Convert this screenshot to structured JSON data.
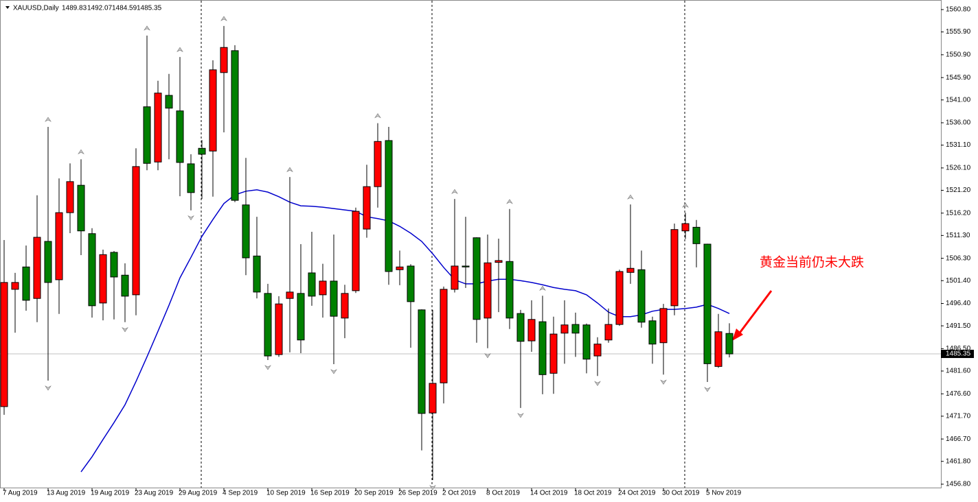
{
  "chart_data": {
    "type": "candlestick",
    "title": "XAUUSD,Daily",
    "annotation": "黄金当前仍未大跌",
    "categories": [
      "7 Aug 2019",
      null,
      null,
      null,
      "13 Aug 2019",
      null,
      null,
      null,
      "19 Aug 2019",
      null,
      null,
      null,
      "23 Aug 2019",
      null,
      null,
      null,
      "29 Aug 2019",
      null,
      null,
      null,
      "4 Sep 2019",
      null,
      null,
      null,
      "10 Sep 2019",
      null,
      null,
      null,
      "16 Sep 2019",
      null,
      null,
      null,
      "20 Sep 2019",
      null,
      null,
      null,
      "26 Sep 2019",
      null,
      null,
      null,
      "2 Oct 2019",
      null,
      null,
      null,
      "8 Oct 2019",
      null,
      null,
      null,
      "14 Oct 2019",
      null,
      null,
      null,
      "18 Oct 2019",
      null,
      null,
      null,
      "24 Oct 2019",
      null,
      null,
      null,
      "30 Oct 2019",
      null,
      null,
      null,
      "5 Nov 2019",
      null,
      null
    ],
    "open": [
      1473.8,
      1499.5,
      1504.4,
      1497.5,
      1510.0,
      1501.6,
      1516.3,
      1522.3,
      1511.7,
      1496.5,
      1507.6,
      1502.6,
      1498.3,
      1539.5,
      1527.4,
      1542.0,
      1538.6,
      1527.0,
      1530.4,
      1529.8,
      1547.0,
      1551.8,
      1518.0,
      1506.8,
      1498.6,
      1485.2,
      1497.5,
      1498.6,
      1503.1,
      1498.3,
      1501.3,
      1493.2,
      1499.2,
      1512.7,
      1522.0,
      1532.1,
      1503.8,
      1504.6,
      1495.0,
      1472.4,
      1479.0,
      1499.5,
      1504.6,
      1510.8,
      1493.2,
      1505.4,
      1505.6,
      1494.2,
      1488.2,
      1492.4,
      1481.1,
      1489.9,
      1491.8,
      1491.7,
      1484.9,
      1488.4,
      1491.8,
      1503.2,
      1503.8,
      1492.6,
      1487.8,
      1495.9,
      1512.3,
      1513.1,
      1509.4,
      1482.6,
      1489.83
    ],
    "high": [
      1510.3,
      1503.1,
      1509.1,
      1520.1,
      1535.1,
      1523.8,
      1527.1,
      1528.0,
      1512.9,
      1508.2,
      1507.9,
      1505.2,
      1530.4,
      1555.1,
      1545.2,
      1546.7,
      1550.4,
      1529.1,
      1532.2,
      1549.7,
      1557.2,
      1553.0,
      1528.3,
      1515.4,
      1500.7,
      1498.0,
      1524.1,
      1509.4,
      1512.1,
      1505.1,
      1511.5,
      1500.5,
      1517.4,
      1526.8,
      1535.9,
      1535.1,
      1508.0,
      1505.0,
      1495.1,
      1495.0,
      1500.1,
      1519.3,
      1515.4,
      1510.9,
      1511.5,
      1510.6,
      1517.1,
      1495.0,
      1497.1,
      1498.1,
      1493.5,
      1497.1,
      1494.4,
      1492.0,
      1489.0,
      1495.3,
      1503.8,
      1518.1,
      1508.0,
      1493.5,
      1496.3,
      1513.9,
      1516.3,
      1514.7,
      1509.5,
      1494.1,
      1492.07
    ],
    "low": [
      1472.0,
      1490.0,
      1494.8,
      1492.3,
      1479.5,
      1494.1,
      1511.8,
      1507.0,
      1493.3,
      1492.7,
      1492.9,
      1492.3,
      1493.8,
      1525.6,
      1525.6,
      1528.0,
      1519.9,
      1516.8,
      1519.3,
      1519.8,
      1533.9,
      1518.6,
      1502.6,
      1497.5,
      1484.0,
      1484.7,
      1485.7,
      1485.5,
      1495.9,
      1493.3,
      1483.1,
      1488.8,
      1498.7,
      1510.8,
      1517.4,
      1500.5,
      1500.4,
      1486.7,
      1464.2,
      1457.7,
      1474.5,
      1498.8,
      1499.8,
      1487.8,
      1486.6,
      1494.5,
      1490.8,
      1473.5,
      1485.8,
      1476.5,
      1476.6,
      1483.2,
      1484.7,
      1481.1,
      1480.5,
      1487.8,
      1491.5,
      1500.7,
      1491.1,
      1483.2,
      1480.8,
      1493.8,
      1510.5,
      1504.3,
      1479.2,
      1482.3,
      1484.59
    ],
    "close": [
      1501.0,
      1501.0,
      1497.1,
      1510.9,
      1501.0,
      1516.3,
      1523.1,
      1512.3,
      1495.9,
      1507.1,
      1502.2,
      1498.0,
      1526.4,
      1527.1,
      1542.5,
      1539.2,
      1527.3,
      1520.7,
      1529.1,
      1547.6,
      1552.5,
      1519.0,
      1506.4,
      1498.9,
      1484.9,
      1496.3,
      1498.9,
      1488.4,
      1498.0,
      1501.3,
      1493.6,
      1498.6,
      1516.6,
      1522.0,
      1531.9,
      1503.4,
      1504.4,
      1496.8,
      1472.3,
      1478.9,
      1499.5,
      1504.6,
      1504.4,
      1492.9,
      1505.3,
      1505.8,
      1493.2,
      1488.1,
      1492.9,
      1480.8,
      1489.7,
      1491.7,
      1489.9,
      1484.2,
      1487.5,
      1491.8,
      1503.4,
      1504.1,
      1492.3,
      1487.5,
      1495.3,
      1512.6,
      1513.9,
      1509.5,
      1483.2,
      1490.2,
      1485.35
    ],
    "up_color": "#ff0000",
    "down_color": "#008000",
    "ma": {
      "color": "#0000cc",
      "values": [
        null,
        null,
        null,
        null,
        null,
        null,
        null,
        1459.5,
        1462.8,
        1466.6,
        1470.3,
        1474.2,
        1479.3,
        1484.7,
        1490.3,
        1496.0,
        1502.0,
        1506.5,
        1511.1,
        1514.8,
        1518.3,
        1520.2,
        1521.0,
        1521.3,
        1520.8,
        1519.8,
        1518.6,
        1517.8,
        1517.7,
        1517.5,
        1517.2,
        1516.9,
        1516.6,
        1515.4,
        1515.0,
        1514.5,
        1513.3,
        1511.8,
        1510.0,
        1507.3,
        1504.3,
        1501.6,
        1500.7,
        1500.7,
        1501.3,
        1501.7,
        1501.7,
        1501.4,
        1501.0,
        1500.5,
        1499.9,
        1499.5,
        1499.2,
        1498.3,
        1496.5,
        1494.5,
        1493.5,
        1493.5,
        1493.9,
        1494.7,
        1495.1,
        1495.1,
        1495.3,
        1495.6,
        1496.2,
        1495.3,
        1494.2
      ]
    },
    "ylim": [
      1455.9,
      1562.9
    ],
    "yticks": [
      {
        "value": 1560.8,
        "label": "1560.80"
      },
      {
        "value": 1555.9,
        "label": "1555.90"
      },
      {
        "value": 1550.9,
        "label": "1550.90"
      },
      {
        "value": 1545.9,
        "label": "1545.90"
      },
      {
        "value": 1541.0,
        "label": "1541.00"
      },
      {
        "value": 1536.0,
        "label": "1536.00"
      },
      {
        "value": 1531.1,
        "label": "1531.10"
      },
      {
        "value": 1526.1,
        "label": "1526.10"
      },
      {
        "value": 1521.2,
        "label": "1521.20"
      },
      {
        "value": 1516.2,
        "label": "1516.20"
      },
      {
        "value": 1511.3,
        "label": "1511.30"
      },
      {
        "value": 1506.3,
        "label": "1506.30"
      },
      {
        "value": 1501.4,
        "label": "1501.40"
      },
      {
        "value": 1496.4,
        "label": "1496.40"
      },
      {
        "value": 1491.5,
        "label": "1491.50"
      },
      {
        "value": 1486.5,
        "label": "1486.50"
      },
      {
        "value": 1481.6,
        "label": "1481.60"
      },
      {
        "value": 1476.6,
        "label": "1476.60"
      },
      {
        "value": 1471.7,
        "label": "1471.70"
      },
      {
        "value": 1466.7,
        "label": "1466.70"
      },
      {
        "value": 1461.8,
        "label": "1461.80"
      },
      {
        "value": 1456.8,
        "label": "1456.80"
      }
    ]
  }
}
